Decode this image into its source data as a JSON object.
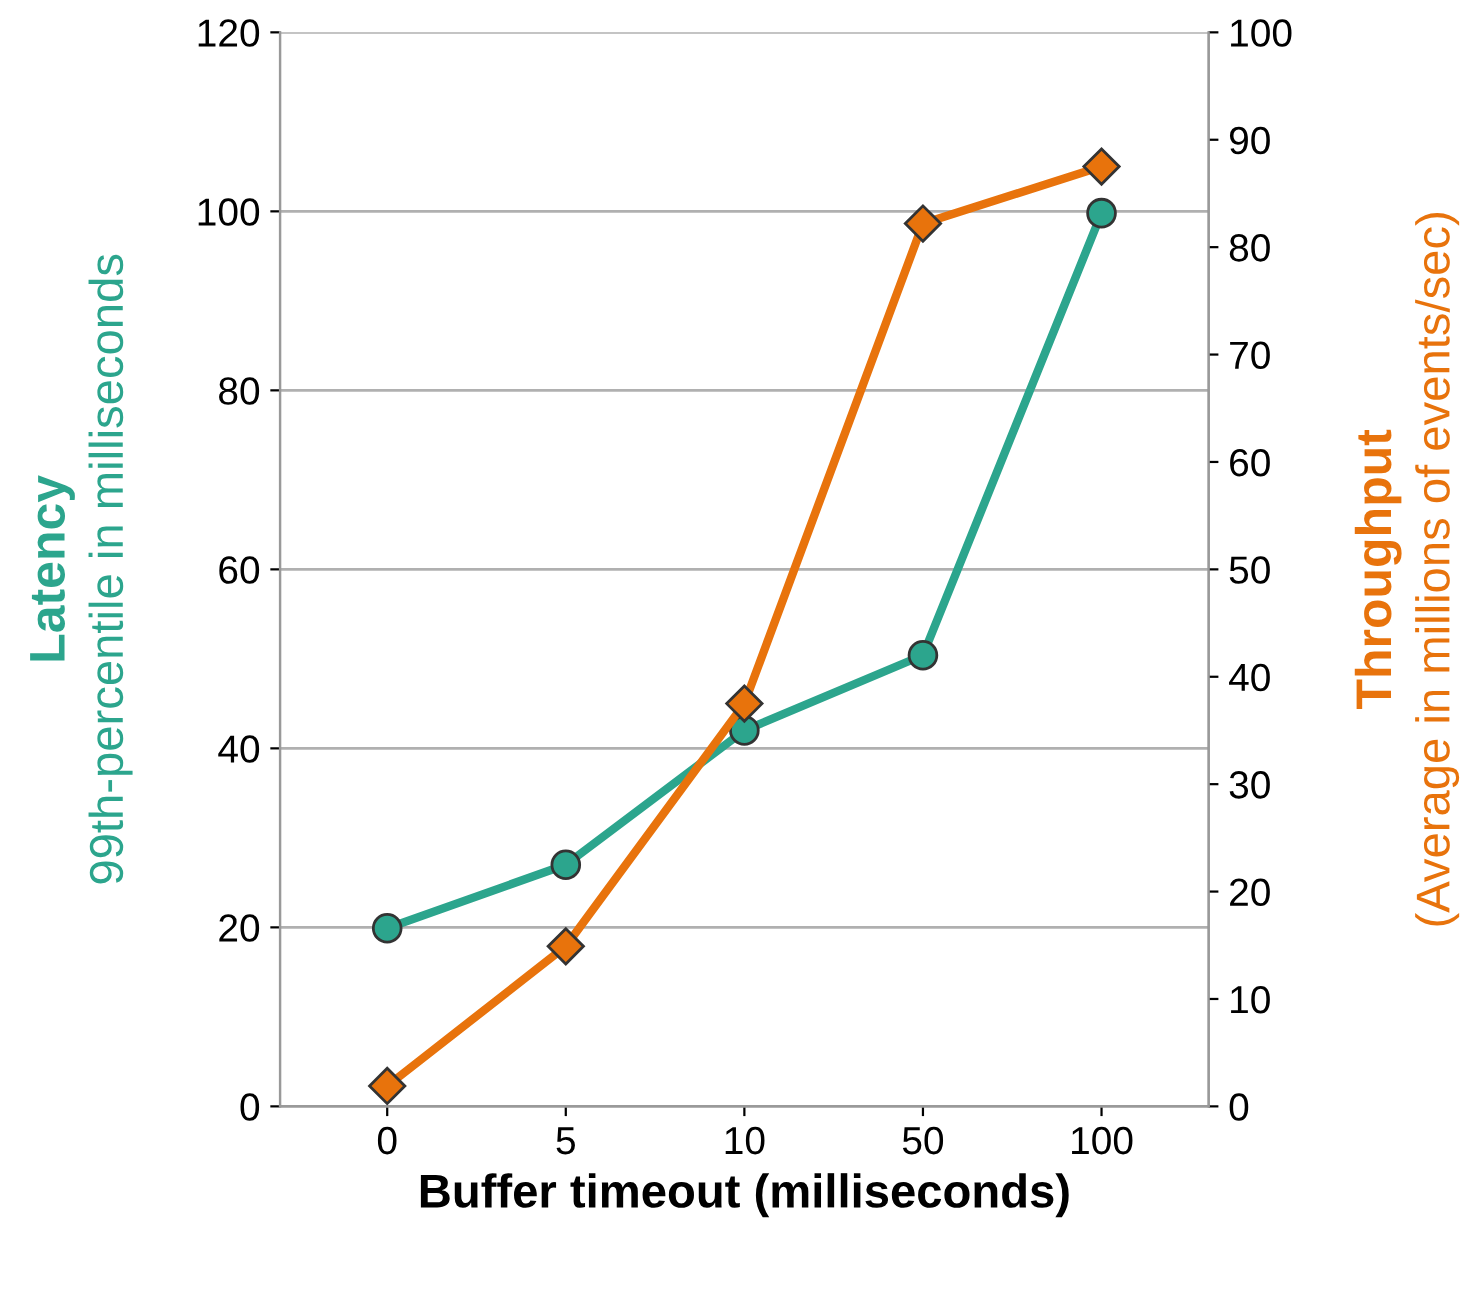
{
  "chart_data": {
    "type": "line",
    "xlabel": "Buffer timeout (milliseconds)",
    "ylabel": "Latency\n99th-percentile in milliseconds",
    "y2label": "Throughput\n(Average in millions of events/sec)",
    "categories": [
      "0",
      "5",
      "10",
      "50",
      "100"
    ],
    "series": [
      {
        "color": "#2ca58d",
        "marker": "circle",
        "values": [
          19.9,
          27,
          42,
          50.4,
          99.8
        ]
      },
      {
        "color": "#e8730c",
        "marker": "diamond",
        "axis": "y2",
        "values": [
          1.9,
          14.9,
          37.5,
          82.2,
          87.5
        ]
      }
    ],
    "ylim": [
      0,
      120
    ],
    "yticks": [
      0,
      20,
      40,
      60,
      80,
      100,
      120
    ],
    "y2lim": [
      0,
      100
    ],
    "y2ticks": [
      0,
      10,
      20,
      30,
      40,
      50,
      60,
      70,
      80,
      90,
      100
    ],
    "grid": "y",
    "line_style": "solid"
  }
}
